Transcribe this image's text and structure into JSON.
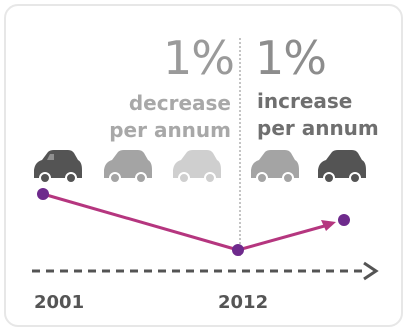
{
  "left": {
    "percent": "1%",
    "label_line1": "decrease",
    "label_line2": "per annum"
  },
  "right": {
    "percent": "1%",
    "label_line1": "increase",
    "label_line2": "per annum"
  },
  "timeline": {
    "start_year": "2001",
    "end_year": "2012"
  },
  "cars": [
    {
      "icon": "car-icon",
      "color": "#545454"
    },
    {
      "icon": "car-icon",
      "color": "#a4a4a4"
    },
    {
      "icon": "car-icon",
      "color": "#cfcfcf"
    },
    {
      "icon": "car-icon",
      "color": "#a4a4a4"
    },
    {
      "icon": "car-icon",
      "color": "#545454"
    }
  ],
  "colors": {
    "trend": "#b5367f",
    "marker": "#6e2a8c",
    "arrow": "#545454"
  }
}
